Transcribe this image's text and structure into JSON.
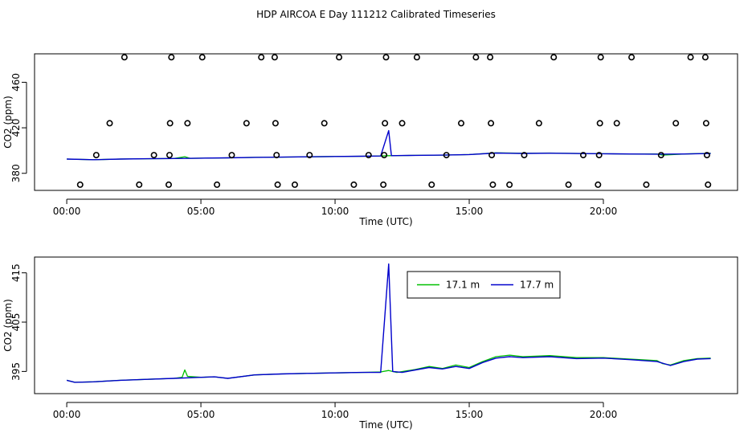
{
  "title": "HDP AIRCOA E  Day 111212  Calibrated Timeseries",
  "chart_data": [
    {
      "type": "line",
      "panel": "top",
      "xlabel": "Time (UTC)",
      "ylabel": "CO2 (ppm)",
      "xlim": [
        -1.2,
        25
      ],
      "ylim": [
        365,
        485
      ],
      "x_ticks": [
        0,
        5,
        10,
        15,
        20
      ],
      "x_tick_labels": [
        "00:00",
        "05:00",
        "10:00",
        "15:00",
        "20:00"
      ],
      "y_ticks": [
        380,
        420,
        460
      ],
      "y_tick_labels": [
        "380",
        "420",
        "460"
      ],
      "series": [
        {
          "color": "#00c000",
          "points": [
            [
              0,
              392.5
            ],
            [
              1,
              392.0
            ],
            [
              2,
              392.5
            ],
            [
              3,
              392.8
            ],
            [
              4,
              393.0
            ],
            [
              4.4,
              394.6
            ],
            [
              4.6,
              393.2
            ],
            [
              5,
              393.3
            ],
            [
              6,
              393.6
            ],
            [
              7,
              394.0
            ],
            [
              8,
              394.2
            ],
            [
              9,
              394.5
            ],
            [
              10,
              394.8
            ],
            [
              11,
              395.0
            ],
            [
              11.7,
              395.3
            ],
            [
              12.0,
              395.5
            ],
            [
              12.5,
              395.6
            ],
            [
              13,
              395.8
            ],
            [
              14,
              396.0
            ],
            [
              15,
              396.5
            ],
            [
              16,
              398.0
            ],
            [
              17,
              397.6
            ],
            [
              18,
              397.8
            ],
            [
              19,
              397.5
            ],
            [
              20,
              397.2
            ],
            [
              21,
              397.0
            ],
            [
              22,
              397.0
            ],
            [
              22.2,
              396.0
            ],
            [
              23,
              397.0
            ],
            [
              24,
              397.6
            ]
          ]
        },
        {
          "color": "#0000cc",
          "points": [
            [
              0,
              392.5
            ],
            [
              1,
              392.0
            ],
            [
              2,
              392.5
            ],
            [
              3,
              392.8
            ],
            [
              4,
              393.0
            ],
            [
              5,
              393.3
            ],
            [
              6,
              393.6
            ],
            [
              7,
              394.0
            ],
            [
              8,
              394.2
            ],
            [
              9,
              394.5
            ],
            [
              10,
              394.8
            ],
            [
              11,
              395.0
            ],
            [
              11.7,
              395.2
            ],
            [
              12.0,
              417.5
            ],
            [
              12.1,
              395.5
            ],
            [
              12.5,
              395.6
            ],
            [
              13,
              395.8
            ],
            [
              14,
              396.0
            ],
            [
              15,
              396.5
            ],
            [
              16,
              397.8
            ],
            [
              17,
              397.5
            ],
            [
              18,
              397.7
            ],
            [
              19,
              397.4
            ],
            [
              20,
              397.2
            ],
            [
              21,
              397.0
            ],
            [
              22,
              396.8
            ],
            [
              23,
              397.0
            ],
            [
              24,
              397.4
            ]
          ]
        }
      ],
      "calibration_points": [
        [
          0.5,
          370
        ],
        [
          1.1,
          396
        ],
        [
          1.6,
          424
        ],
        [
          2.15,
          482
        ],
        [
          2.7,
          370
        ],
        [
          3.25,
          396
        ],
        [
          3.8,
          370
        ],
        [
          3.83,
          396
        ],
        [
          3.85,
          424
        ],
        [
          3.9,
          482
        ],
        [
          4.5,
          424
        ],
        [
          5.05,
          482
        ],
        [
          5.6,
          370
        ],
        [
          6.15,
          396
        ],
        [
          6.7,
          424
        ],
        [
          7.25,
          482
        ],
        [
          7.75,
          482
        ],
        [
          7.78,
          424
        ],
        [
          7.82,
          396
        ],
        [
          7.86,
          370
        ],
        [
          8.5,
          370
        ],
        [
          9.05,
          396
        ],
        [
          9.6,
          424
        ],
        [
          10.15,
          482
        ],
        [
          10.7,
          370
        ],
        [
          11.25,
          396
        ],
        [
          11.8,
          370
        ],
        [
          11.83,
          396
        ],
        [
          11.86,
          424
        ],
        [
          11.9,
          482
        ],
        [
          12.5,
          424
        ],
        [
          13.05,
          482
        ],
        [
          13.6,
          370
        ],
        [
          14.15,
          396
        ],
        [
          14.7,
          424
        ],
        [
          15.25,
          482
        ],
        [
          15.78,
          482
        ],
        [
          15.81,
          424
        ],
        [
          15.84,
          396
        ],
        [
          15.88,
          370
        ],
        [
          16.5,
          370
        ],
        [
          17.05,
          396
        ],
        [
          17.6,
          424
        ],
        [
          18.15,
          482
        ],
        [
          18.7,
          370
        ],
        [
          19.25,
          396
        ],
        [
          19.8,
          370
        ],
        [
          19.84,
          396
        ],
        [
          19.87,
          424
        ],
        [
          19.9,
          482
        ],
        [
          20.5,
          424
        ],
        [
          21.05,
          482
        ],
        [
          21.6,
          370
        ],
        [
          22.15,
          396
        ],
        [
          22.7,
          424
        ],
        [
          23.25,
          482
        ],
        [
          23.8,
          482
        ],
        [
          23.83,
          424
        ],
        [
          23.86,
          396
        ],
        [
          23.9,
          370
        ]
      ]
    },
    {
      "type": "line",
      "panel": "bottom",
      "xlabel": "Time (UTC)",
      "ylabel": "CO2 (ppm)",
      "xlim": [
        -1.2,
        25
      ],
      "ylim": [
        390.5,
        418.2
      ],
      "x_ticks": [
        0,
        5,
        10,
        15,
        20
      ],
      "x_tick_labels": [
        "00:00",
        "05:00",
        "10:00",
        "15:00",
        "20:00"
      ],
      "y_ticks": [
        395,
        405,
        415
      ],
      "y_tick_labels": [
        "395",
        "405",
        "415"
      ],
      "legend": {
        "position": "top-right",
        "entries": [
          "17.1 m",
          "17.7 m"
        ]
      },
      "series": [
        {
          "name": "17.1 m",
          "color": "#00c000",
          "points": [
            [
              0,
              393.2
            ],
            [
              0.3,
              392.8
            ],
            [
              1,
              392.9
            ],
            [
              2,
              393.2
            ],
            [
              3,
              393.4
            ],
            [
              4,
              393.6
            ],
            [
              4.3,
              393.8
            ],
            [
              4.4,
              395.3
            ],
            [
              4.5,
              394.0
            ],
            [
              5,
              393.8
            ],
            [
              5.5,
              393.9
            ],
            [
              6,
              393.6
            ],
            [
              7,
              394.3
            ],
            [
              8,
              394.5
            ],
            [
              9,
              394.6
            ],
            [
              10,
              394.7
            ],
            [
              11,
              394.8
            ],
            [
              11.7,
              394.9
            ],
            [
              12.0,
              395.2
            ],
            [
              12.3,
              394.8
            ],
            [
              13,
              395.4
            ],
            [
              13.5,
              396.0
            ],
            [
              14,
              395.6
            ],
            [
              14.5,
              396.3
            ],
            [
              15,
              395.8
            ],
            [
              15.5,
              397.0
            ],
            [
              16,
              398.0
            ],
            [
              16.5,
              398.3
            ],
            [
              17,
              398.0
            ],
            [
              18,
              398.2
            ],
            [
              19,
              397.8
            ],
            [
              20,
              397.8
            ],
            [
              21,
              397.5
            ],
            [
              22,
              397.2
            ],
            [
              22.2,
              396.6
            ],
            [
              22.5,
              396.3
            ],
            [
              23,
              397.2
            ],
            [
              23.5,
              397.6
            ],
            [
              24,
              397.7
            ]
          ]
        },
        {
          "name": "17.7 m",
          "color": "#0000cc",
          "points": [
            [
              0,
              393.2
            ],
            [
              0.3,
              392.8
            ],
            [
              1,
              392.9
            ],
            [
              2,
              393.2
            ],
            [
              3,
              393.4
            ],
            [
              4,
              393.6
            ],
            [
              5,
              393.8
            ],
            [
              5.5,
              393.9
            ],
            [
              6,
              393.6
            ],
            [
              7,
              394.3
            ],
            [
              8,
              394.5
            ],
            [
              9,
              394.6
            ],
            [
              10,
              394.7
            ],
            [
              11,
              394.8
            ],
            [
              11.7,
              394.8
            ],
            [
              12.0,
              416.8
            ],
            [
              12.15,
              395.0
            ],
            [
              12.5,
              394.8
            ],
            [
              13,
              395.3
            ],
            [
              13.5,
              395.8
            ],
            [
              14,
              395.5
            ],
            [
              14.5,
              396.0
            ],
            [
              15,
              395.6
            ],
            [
              15.5,
              396.8
            ],
            [
              16,
              397.7
            ],
            [
              16.5,
              398.0
            ],
            [
              17,
              397.8
            ],
            [
              18,
              398.0
            ],
            [
              19,
              397.6
            ],
            [
              20,
              397.7
            ],
            [
              21,
              397.4
            ],
            [
              22,
              397.0
            ],
            [
              22.5,
              396.2
            ],
            [
              23,
              397.0
            ],
            [
              23.5,
              397.5
            ],
            [
              24,
              397.6
            ]
          ]
        }
      ]
    }
  ]
}
